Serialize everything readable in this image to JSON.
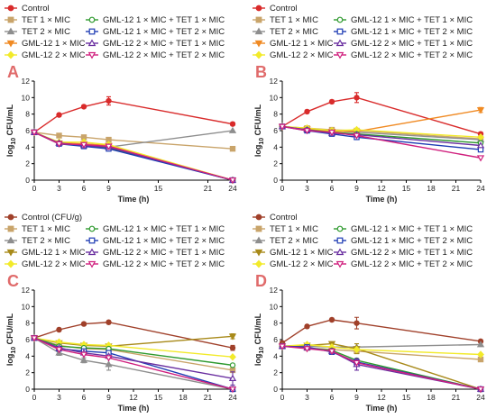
{
  "legend_column_b": [
    "GML-12 1 × MIC + TET 1 × MIC",
    "GML-12 1 × MIC + TET 2 × MIC",
    "GML-12 2 × MIC + TET 1 × MIC",
    "GML-12 2 × MIC + TET 2 × MIC"
  ],
  "colors": {
    "control": "#d92b2b",
    "control_cd": "#a0402a",
    "tet1": "#c9a46a",
    "tet2": "#8e8e8e",
    "gml1": "#f08a23",
    "gml1_cd": "#a88a1a",
    "gml2": "#f2ea2a",
    "c11": "#2f9a2f",
    "c12": "#1e3cb4",
    "c21": "#6a2fa0",
    "c22": "#d0207e",
    "letter": "#e06b6b"
  },
  "chart_data": [
    {
      "type": "line",
      "panel": "A",
      "legend": [
        "Control",
        "TET 1 × MIC",
        "TET 2 × MIC",
        "GML-12 1 × MIC",
        "GML-12 2 × MIC"
      ],
      "xlabel": "Time (h)",
      "ylabel": "log10 CFU/mL",
      "xticks": [
        0,
        3,
        6,
        9,
        15,
        21,
        24
      ],
      "yticks": [
        0,
        2,
        4,
        6,
        8,
        10,
        12
      ],
      "xlim": [
        0,
        24
      ],
      "ylim": [
        0,
        12
      ],
      "series": [
        {
          "name": "Control",
          "x": [
            0,
            3,
            6,
            9,
            24
          ],
          "y": [
            5.8,
            7.9,
            8.9,
            9.6,
            6.8
          ],
          "err": [
            0.2,
            0.2,
            0.2,
            0.5,
            0.2
          ]
        },
        {
          "name": "TET 1 × MIC",
          "x": [
            0,
            3,
            6,
            9,
            24
          ],
          "y": [
            5.8,
            5.4,
            5.2,
            4.9,
            3.8
          ]
        },
        {
          "name": "TET 2 × MIC",
          "x": [
            0,
            3,
            6,
            9,
            24
          ],
          "y": [
            5.8,
            4.5,
            4.3,
            4.0,
            6.0
          ]
        },
        {
          "name": "GML-12 1 × MIC",
          "x": [
            0,
            3,
            6,
            9,
            24
          ],
          "y": [
            5.8,
            4.5,
            4.4,
            4.2,
            0
          ]
        },
        {
          "name": "GML-12 2 × MIC",
          "x": [
            0,
            3,
            6,
            9,
            24
          ],
          "y": [
            5.8,
            4.6,
            4.6,
            4.3,
            0
          ]
        },
        {
          "name": "GML-12 1 × MIC + TET 1 × MIC",
          "x": [
            0,
            3,
            6,
            9,
            24
          ],
          "y": [
            5.8,
            4.4,
            4.2,
            3.9,
            0
          ]
        },
        {
          "name": "GML-12 1 × MIC + TET 2 × MIC",
          "x": [
            0,
            3,
            6,
            9,
            24
          ],
          "y": [
            5.8,
            4.4,
            4.1,
            3.8,
            0
          ]
        },
        {
          "name": "GML-12 2 × MIC + TET 1 × MIC",
          "x": [
            0,
            3,
            6,
            9,
            24
          ],
          "y": [
            5.8,
            4.5,
            4.2,
            4.0,
            0
          ]
        },
        {
          "name": "GML-12 2 × MIC + TET 2 × MIC",
          "x": [
            0,
            3,
            6,
            9,
            24
          ],
          "y": [
            5.8,
            4.4,
            4.3,
            4.1,
            0
          ]
        }
      ]
    },
    {
      "type": "line",
      "panel": "B",
      "legend": [
        "Control",
        "TET 1 × MIC",
        "TET 2 × MIC",
        "GML-12 1 × MIC",
        "GML-12 2 × MIC"
      ],
      "xlabel": "Time (h)",
      "ylabel": "log10 CFU/mL",
      "xticks": [
        0,
        3,
        6,
        9,
        12,
        15,
        18,
        21,
        24
      ],
      "yticks": [
        0,
        2,
        4,
        6,
        8,
        10,
        12
      ],
      "xlim": [
        0,
        24
      ],
      "ylim": [
        0,
        12
      ],
      "series": [
        {
          "name": "Control",
          "x": [
            0,
            3,
            6,
            9,
            24
          ],
          "y": [
            6.5,
            8.3,
            9.5,
            10.0,
            5.6
          ],
          "err": [
            0.2,
            0.2,
            0.2,
            0.6,
            0.2
          ]
        },
        {
          "name": "TET 1 × MIC",
          "x": [
            0,
            3,
            6,
            9,
            24
          ],
          "y": [
            6.5,
            6.3,
            6.1,
            6.0,
            5.0
          ]
        },
        {
          "name": "TET 2 × MIC",
          "x": [
            0,
            3,
            6,
            9,
            24
          ],
          "y": [
            6.5,
            6.2,
            6.0,
            5.8,
            4.9
          ]
        },
        {
          "name": "GML-12 1 × MIC",
          "x": [
            0,
            3,
            6,
            9,
            24
          ],
          "y": [
            6.5,
            6.2,
            5.9,
            5.9,
            8.5
          ],
          "err": [
            0,
            0,
            0,
            0,
            0.3
          ]
        },
        {
          "name": "GML-12 2 × MIC",
          "x": [
            0,
            3,
            6,
            9,
            24
          ],
          "y": [
            6.5,
            6.3,
            6.0,
            6.1,
            5.2
          ]
        },
        {
          "name": "GML-12 1 × MIC + TET 1 × MIC",
          "x": [
            0,
            3,
            6,
            9,
            24
          ],
          "y": [
            6.5,
            6.1,
            5.8,
            5.6,
            4.5
          ]
        },
        {
          "name": "GML-12 1 × MIC + TET 2 × MIC",
          "x": [
            0,
            3,
            6,
            9,
            24
          ],
          "y": [
            6.5,
            6.0,
            5.6,
            5.2,
            3.7
          ]
        },
        {
          "name": "GML-12 2 × MIC + TET 1 × MIC",
          "x": [
            0,
            3,
            6,
            9,
            24
          ],
          "y": [
            6.5,
            6.1,
            5.7,
            5.5,
            4.2
          ]
        },
        {
          "name": "GML-12 2 × MIC + TET 2 × MIC",
          "x": [
            0,
            3,
            6,
            9,
            24
          ],
          "y": [
            6.5,
            6.0,
            5.8,
            5.4,
            2.7
          ]
        }
      ]
    },
    {
      "type": "line",
      "panel": "C",
      "legend": [
        "Control (CFU/g)",
        "TET 1 × MIC",
        "TET 2 × MIC",
        "GML-12 1 × MIC",
        "GML-12 2 × MIC"
      ],
      "xlabel": "Time (h)",
      "ylabel": "log10 CFU/mL",
      "xticks": [
        0,
        3,
        6,
        9,
        12,
        15,
        18,
        21,
        24
      ],
      "yticks": [
        0,
        2,
        4,
        6,
        8,
        10,
        12
      ],
      "xlim": [
        0,
        24
      ],
      "ylim": [
        0,
        12
      ],
      "series": [
        {
          "name": "Control (CFU/g)",
          "x": [
            0,
            3,
            6,
            9,
            24
          ],
          "y": [
            6.2,
            7.2,
            7.9,
            8.1,
            5.0
          ],
          "err": [
            0.2,
            0.2,
            0.2,
            0.2,
            0.3
          ]
        },
        {
          "name": "TET 1 × MIC",
          "x": [
            0,
            3,
            6,
            9,
            24
          ],
          "y": [
            6.2,
            5.3,
            4.9,
            4.8,
            2.3
          ]
        },
        {
          "name": "TET 2 × MIC",
          "x": [
            0,
            3,
            6,
            9,
            24
          ],
          "y": [
            6.2,
            4.4,
            3.5,
            3.0,
            0
          ],
          "err": [
            0,
            0.3,
            0.3,
            0.7,
            0
          ]
        },
        {
          "name": "GML-12 1 × MIC",
          "x": [
            0,
            3,
            6,
            9,
            24
          ],
          "y": [
            6.2,
            5.6,
            5.3,
            5.2,
            6.4
          ],
          "err": [
            0,
            0,
            0,
            0,
            0.3
          ]
        },
        {
          "name": "GML-12 2 × MIC",
          "x": [
            0,
            3,
            6,
            9,
            24
          ],
          "y": [
            6.2,
            5.7,
            5.4,
            5.3,
            3.9
          ]
        },
        {
          "name": "GML-12 1 × MIC + TET 1 × MIC",
          "x": [
            0,
            3,
            6,
            9,
            24
          ],
          "y": [
            6.2,
            5.2,
            5.0,
            4.9,
            2.9
          ]
        },
        {
          "name": "GML-12 1 × MIC + TET 2 × MIC",
          "x": [
            0,
            3,
            6,
            9,
            24
          ],
          "y": [
            6.2,
            4.9,
            4.6,
            4.4,
            0
          ]
        },
        {
          "name": "GML-12 2 × MIC + TET 1 × MIC",
          "x": [
            0,
            3,
            6,
            9,
            24
          ],
          "y": [
            6.2,
            5.0,
            4.4,
            4.0,
            1.3
          ],
          "err": [
            0,
            0,
            0,
            0,
            0.8
          ]
        },
        {
          "name": "GML-12 2 × MIC + TET 2 × MIC",
          "x": [
            0,
            3,
            6,
            9,
            24
          ],
          "y": [
            6.2,
            4.8,
            4.2,
            3.8,
            0
          ]
        }
      ]
    },
    {
      "type": "line",
      "panel": "D",
      "legend": [
        "Control",
        "TET 1 × MIC",
        "TET 2 × MIC",
        "GML-12 1 × MIC",
        "GML-12 2 × MIC"
      ],
      "xlabel": "Time (h)",
      "ylabel": "log10 CFU/mL",
      "xticks": [
        0,
        3,
        6,
        9,
        12,
        15,
        18,
        21,
        24
      ],
      "yticks": [
        0,
        2,
        4,
        6,
        8,
        10,
        12
      ],
      "xlim": [
        0,
        24
      ],
      "ylim": [
        0,
        12
      ],
      "series": [
        {
          "name": "Control",
          "x": [
            0,
            3,
            6,
            9,
            24
          ],
          "y": [
            5.6,
            7.6,
            8.4,
            8.0,
            5.8
          ],
          "err": [
            0.2,
            0.2,
            0.2,
            0.7,
            0.2
          ]
        },
        {
          "name": "TET 1 × MIC",
          "x": [
            0,
            3,
            6,
            9,
            24
          ],
          "y": [
            5.2,
            5.0,
            4.8,
            4.6,
            3.6
          ]
        },
        {
          "name": "TET 2 × MIC",
          "x": [
            0,
            3,
            6,
            9,
            24
          ],
          "y": [
            5.2,
            5.2,
            5.1,
            5.1,
            5.4
          ]
        },
        {
          "name": "GML-12 1 × MIC",
          "x": [
            0,
            3,
            6,
            9,
            24
          ],
          "y": [
            5.2,
            5.3,
            5.5,
            4.9,
            0
          ],
          "err": [
            0,
            0,
            0,
            0.6,
            0
          ]
        },
        {
          "name": "GML-12 2 × MIC",
          "x": [
            0,
            3,
            6,
            9,
            24
          ],
          "y": [
            5.2,
            5.4,
            5.1,
            4.8,
            4.2
          ]
        },
        {
          "name": "GML-12 1 × MIC + TET 1 × MIC",
          "x": [
            0,
            3,
            6,
            9,
            24
          ],
          "y": [
            5.2,
            5.0,
            4.7,
            3.5,
            0
          ]
        },
        {
          "name": "GML-12 1 × MIC + TET 2 × MIC",
          "x": [
            0,
            3,
            6,
            9,
            24
          ],
          "y": [
            5.2,
            5.1,
            4.5,
            3.3,
            0
          ]
        },
        {
          "name": "GML-12 2 × MIC + TET 1 × MIC",
          "x": [
            0,
            3,
            6,
            9,
            24
          ],
          "y": [
            5.2,
            5.0,
            4.6,
            3.0,
            0
          ],
          "err": [
            0,
            0,
            0,
            0.7,
            0
          ]
        },
        {
          "name": "GML-12 2 × MIC + TET 2 × MIC",
          "x": [
            0,
            3,
            6,
            9,
            24
          ],
          "y": [
            5.2,
            4.9,
            4.6,
            3.2,
            0
          ]
        }
      ]
    }
  ]
}
